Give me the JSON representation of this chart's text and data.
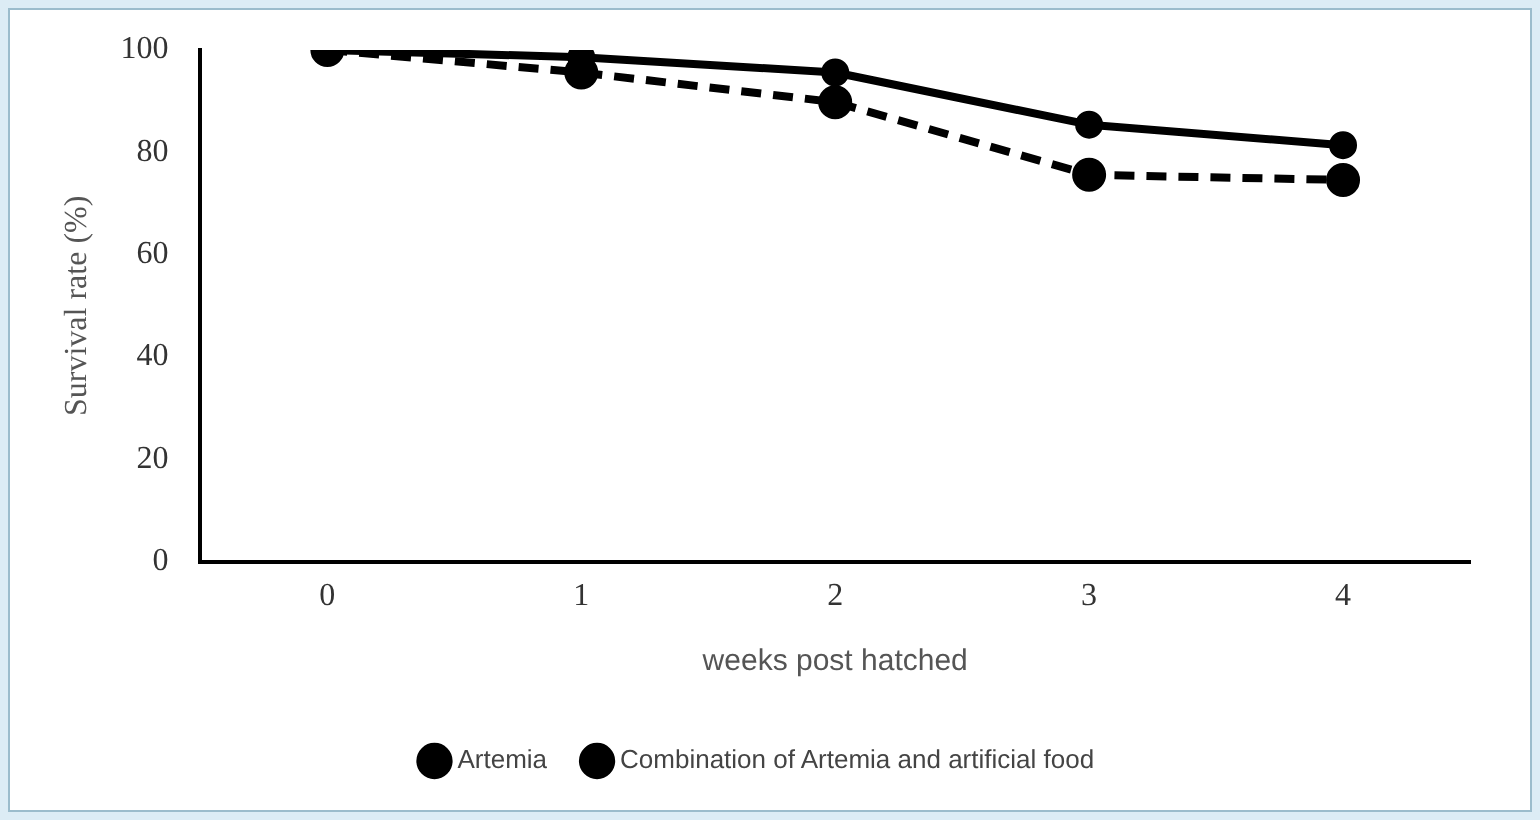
{
  "chart_data": {
    "type": "line",
    "xlabel": "weeks post hatched",
    "ylabel": "Survival rate (%)",
    "categories": [
      "0",
      "1",
      "2",
      "3",
      "4"
    ],
    "series": [
      {
        "name": "Artemia",
        "color": "#000000",
        "values": [
          100,
          98.6,
          95.6,
          85.4,
          81.4
        ],
        "line_style": "solid"
      },
      {
        "name": "Combination of Artemia and artificial food",
        "color": "#000000",
        "values": [
          100,
          95.6,
          89.8,
          75.6,
          74.6
        ],
        "line_style": "dashed"
      }
    ],
    "ylim": [
      0,
      100
    ],
    "yticks": [
      0,
      20,
      40,
      60,
      80,
      100
    ],
    "grid": false,
    "legend": "bottom",
    "marker": "circle"
  }
}
